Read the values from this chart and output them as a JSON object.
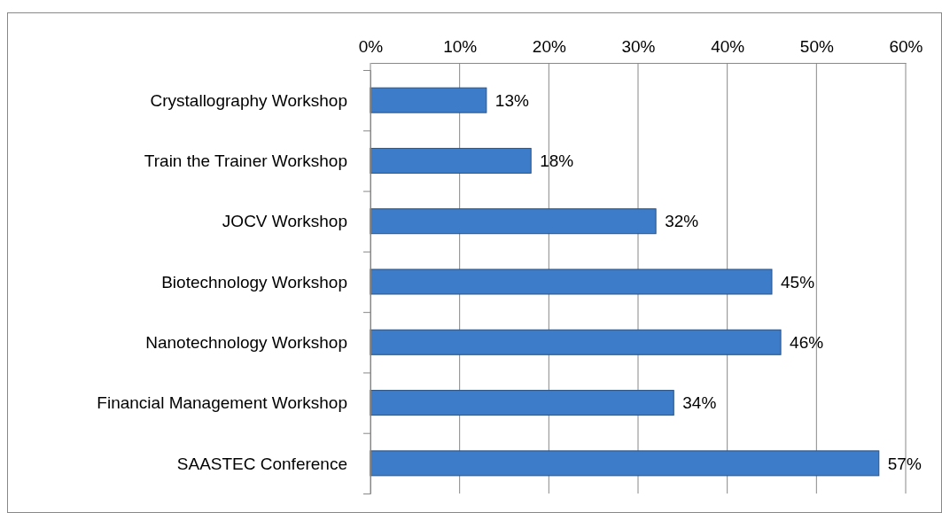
{
  "chart_data": {
    "type": "bar",
    "orientation": "horizontal",
    "categories": [
      "Crystallography Workshop",
      "Train the Trainer Workshop",
      "JOCV Workshop",
      "Biotechnology Workshop",
      "Nanotechnology Workshop",
      "Financial Management Workshop",
      "SAASTEC Conference"
    ],
    "values": [
      13,
      18,
      32,
      45,
      46,
      34,
      57
    ],
    "value_labels": [
      "13%",
      "18%",
      "32%",
      "45%",
      "46%",
      "34%",
      "57%"
    ],
    "color": "#3d7cc9",
    "xlim": [
      0,
      60
    ],
    "xticks": [
      {
        "value": 0,
        "label": "0%"
      },
      {
        "value": 10,
        "label": "10%"
      },
      {
        "value": 20,
        "label": "20%"
      },
      {
        "value": 30,
        "label": "30%"
      },
      {
        "value": 40,
        "label": "40%"
      },
      {
        "value": 50,
        "label": "50%"
      },
      {
        "value": 60,
        "label": "60%"
      }
    ],
    "grid": "x"
  }
}
